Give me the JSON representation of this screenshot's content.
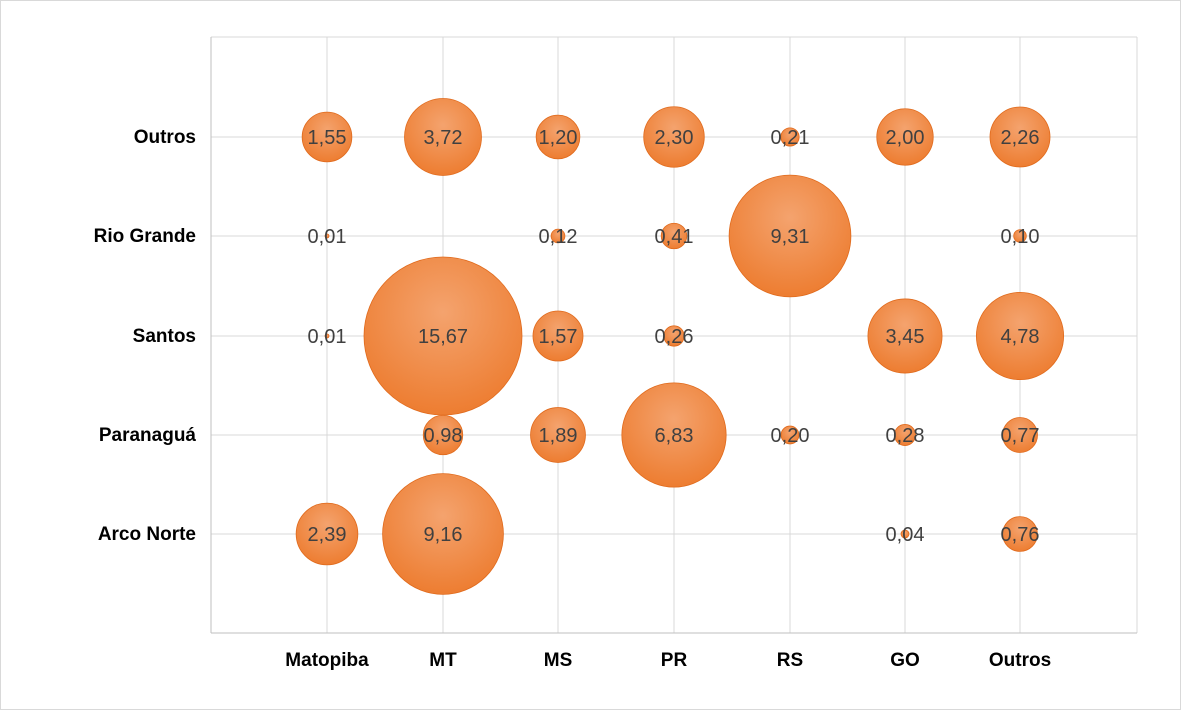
{
  "chart_data": {
    "type": "bubble",
    "x_categories": [
      "Matopiba",
      "MT",
      "MS",
      "PR",
      "RS",
      "GO",
      "Outros"
    ],
    "y_categories": [
      "Arco Norte",
      "Paranaguá",
      "Santos",
      "Rio Grande",
      "Outros"
    ],
    "grid": true,
    "legend": "none",
    "colors": {
      "bubble_fill": "#ED7D31",
      "bubble_highlight": "#F4A36E",
      "bubble_edge": "#E06A1C",
      "grid": "#d9d9d9",
      "axis": "#bfbfbf"
    },
    "points": [
      {
        "x": "Matopiba",
        "y": "Outros",
        "value": 1.55,
        "label": "1,55"
      },
      {
        "x": "MT",
        "y": "Outros",
        "value": 3.72,
        "label": "3,72"
      },
      {
        "x": "MS",
        "y": "Outros",
        "value": 1.2,
        "label": "1,20"
      },
      {
        "x": "PR",
        "y": "Outros",
        "value": 2.3,
        "label": "2,30"
      },
      {
        "x": "RS",
        "y": "Outros",
        "value": 0.21,
        "label": "0,21"
      },
      {
        "x": "GO",
        "y": "Outros",
        "value": 2.0,
        "label": "2,00"
      },
      {
        "x": "Outros",
        "y": "Outros",
        "value": 2.26,
        "label": "2,26"
      },
      {
        "x": "Matopiba",
        "y": "Rio Grande",
        "value": 0.01,
        "label": "0,01"
      },
      {
        "x": "MS",
        "y": "Rio Grande",
        "value": 0.12,
        "label": "0,12"
      },
      {
        "x": "PR",
        "y": "Rio Grande",
        "value": 0.41,
        "label": "0,41"
      },
      {
        "x": "RS",
        "y": "Rio Grande",
        "value": 9.31,
        "label": "9,31"
      },
      {
        "x": "Outros",
        "y": "Rio Grande",
        "value": 0.1,
        "label": "0,10"
      },
      {
        "x": "Matopiba",
        "y": "Santos",
        "value": 0.01,
        "label": "0,01"
      },
      {
        "x": "MT",
        "y": "Santos",
        "value": 15.67,
        "label": "15,67"
      },
      {
        "x": "MS",
        "y": "Santos",
        "value": 1.57,
        "label": "1,57"
      },
      {
        "x": "PR",
        "y": "Santos",
        "value": 0.26,
        "label": "0,26"
      },
      {
        "x": "GO",
        "y": "Santos",
        "value": 3.45,
        "label": "3,45"
      },
      {
        "x": "Outros",
        "y": "Santos",
        "value": 4.78,
        "label": "4,78"
      },
      {
        "x": "MT",
        "y": "Paranaguá",
        "value": 0.98,
        "label": "0,98"
      },
      {
        "x": "MS",
        "y": "Paranaguá",
        "value": 1.89,
        "label": "1,89"
      },
      {
        "x": "PR",
        "y": "Paranaguá",
        "value": 6.83,
        "label": "6,83"
      },
      {
        "x": "RS",
        "y": "Paranaguá",
        "value": 0.2,
        "label": "0,20"
      },
      {
        "x": "GO",
        "y": "Paranaguá",
        "value": 0.28,
        "label": "0,28"
      },
      {
        "x": "Outros",
        "y": "Paranaguá",
        "value": 0.77,
        "label": "0,77"
      },
      {
        "x": "Matopiba",
        "y": "Arco Norte",
        "value": 2.39,
        "label": "2,39"
      },
      {
        "x": "MT",
        "y": "Arco Norte",
        "value": 9.16,
        "label": "9,16"
      },
      {
        "x": "GO",
        "y": "Arco Norte",
        "value": 0.04,
        "label": "0,04"
      },
      {
        "x": "Outros",
        "y": "Arco Norte",
        "value": 0.76,
        "label": "0,76"
      }
    ]
  }
}
